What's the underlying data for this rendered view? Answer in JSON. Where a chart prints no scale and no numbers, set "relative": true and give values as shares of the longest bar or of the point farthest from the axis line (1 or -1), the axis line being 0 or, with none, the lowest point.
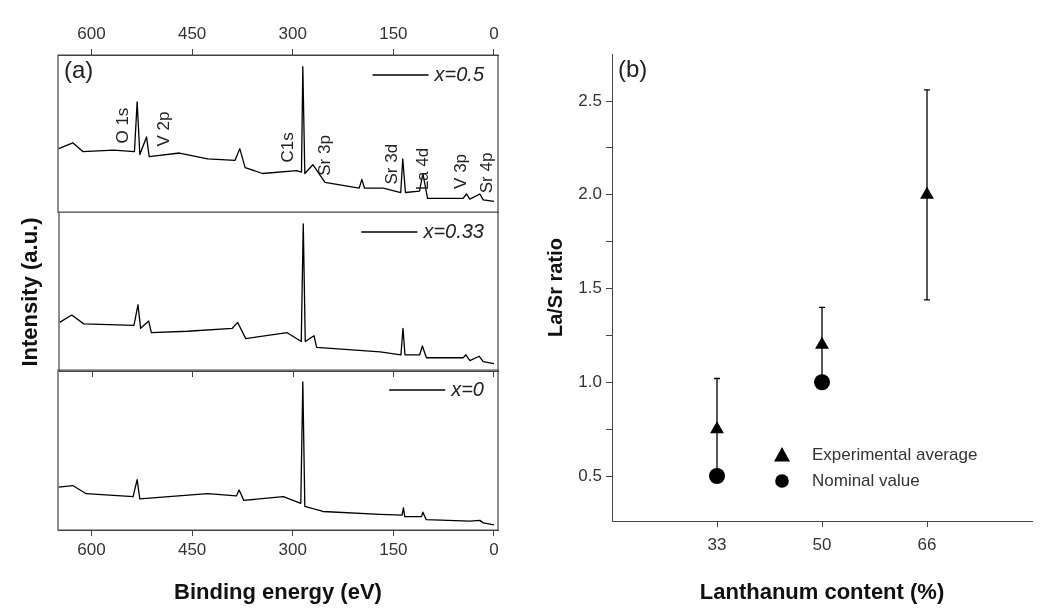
{
  "chart_data": [
    {
      "type": "line",
      "relative": true,
      "legend": "top right",
      "xlim": [
        650,
        -6
      ],
      "xticks": [
        600,
        450,
        300,
        150,
        0
      ],
      "annotations": [
        "(a)",
        {
          "text": "O 1s",
          "x": 542,
          "y": 0.42
        },
        {
          "text": "V 2p",
          "x": 481,
          "y": 0.4
        },
        {
          "text": "C1s",
          "x": 296,
          "y": 0.29
        },
        {
          "text": "Sr 3p",
          "x": 242,
          "y": 0.2
        },
        {
          "text": "Sr 3d",
          "x": 142,
          "y": 0.14
        },
        {
          "text": "La 4d",
          "x": 95,
          "y": 0.1
        },
        {
          "text": "V 3p",
          "x": 39,
          "y": 0.11
        },
        {
          "text": "Sr 4p",
          "x": 0,
          "y": 0.08
        }
      ],
      "series": [
        {
          "name": "x=0.5",
          "color": "#000000",
          "x": [
            649,
            628,
            613,
            567,
            536,
            532,
            528,
            518,
            514,
            469,
            427,
            386,
            379,
            371,
            345,
            294,
            287,
            285,
            282,
            270,
            252,
            201,
            197,
            193,
            165,
            139,
            136,
            132,
            111,
            106,
            99,
            46,
            41,
            36,
            21,
            16,
            0
          ],
          "values": [
            0.44,
            0.48,
            0.42,
            0.43,
            0.42,
            0.76,
            0.4,
            0.52,
            0.385,
            0.41,
            0.37,
            0.36,
            0.44,
            0.31,
            0.27,
            0.29,
            0.28,
            1.0,
            0.27,
            0.33,
            0.21,
            0.17,
            0.23,
            0.17,
            0.17,
            0.14,
            0.37,
            0.14,
            0.15,
            0.27,
            0.1,
            0.1,
            0.13,
            0.095,
            0.13,
            0.09,
            0.08
          ]
        }
      ]
    },
    {
      "type": "line",
      "relative": true,
      "legend": "top right",
      "ylabel": "Intensity (a.u.)",
      "xlim": [
        650,
        -6
      ],
      "xticks": [
        600,
        450,
        300,
        150,
        0
      ],
      "tick_labels": false,
      "series": [
        {
          "name": "x=0.33",
          "color": "#000000",
          "x": [
            649,
            631,
            613,
            538,
            532,
            528,
            516,
            512,
            458,
            391,
            383,
            371,
            309,
            288,
            285,
            282,
            269,
            265,
            170,
            139,
            136,
            133,
            111,
            107,
            101,
            46,
            42,
            36,
            22,
            16,
            0
          ],
          "values": [
            0.33,
            0.38,
            0.32,
            0.31,
            0.45,
            0.29,
            0.34,
            0.26,
            0.27,
            0.29,
            0.33,
            0.22,
            0.26,
            0.2,
            1.0,
            0.2,
            0.24,
            0.16,
            0.13,
            0.11,
            0.29,
            0.11,
            0.11,
            0.17,
            0.09,
            0.09,
            0.11,
            0.07,
            0.1,
            0.063,
            0.05
          ]
        }
      ]
    },
    {
      "type": "line",
      "relative": true,
      "legend": "top right",
      "xlabel": "Binding energy (eV)",
      "xlim": [
        650,
        -6
      ],
      "xticks": [
        600,
        450,
        300,
        150,
        0
      ],
      "series": [
        {
          "name": "x=0",
          "color": "#000000",
          "x": [
            649,
            628,
            608,
            538,
            532,
            528,
            427,
            384,
            380,
            373,
            314,
            288,
            285,
            282,
            255,
            170,
            137,
            135,
            133,
            108,
            106,
            101,
            36,
            21,
            16,
            0
          ],
          "values": [
            0.29,
            0.3,
            0.245,
            0.225,
            0.34,
            0.21,
            0.245,
            0.23,
            0.27,
            0.2,
            0.225,
            0.18,
            1.0,
            0.16,
            0.125,
            0.105,
            0.1,
            0.15,
            0.09,
            0.09,
            0.12,
            0.07,
            0.06,
            0.065,
            0.048,
            0.034
          ]
        }
      ]
    },
    {
      "type": "scatter",
      "annotations": [
        "(b)"
      ],
      "xlabel": "Lanthanum content (%)",
      "ylabel": "La/Sr ratio",
      "categories": [
        "33",
        "50",
        "66"
      ],
      "ylim": [
        0.26,
        2.75
      ],
      "yticks": [
        0.5,
        {
          "value": 0.75,
          "label": null
        },
        {
          "value": 1,
          "label": "1.0"
        },
        {
          "value": 1.25,
          "label": null
        },
        1.5,
        {
          "value": 1.75,
          "label": null
        },
        {
          "value": 2,
          "label": "2.0"
        },
        {
          "value": 2.25,
          "label": null
        },
        2.5
      ],
      "legend": "bottom right",
      "series": [
        {
          "name": "Experimental average",
          "color": "#000000",
          "marker": "triangle",
          "values": [
            0.75,
            1.2,
            2.0
          ],
          "errors": [
            0.27,
            0.2,
            0.56
          ]
        },
        {
          "name": "Nominal value",
          "color": "#000000",
          "marker": "circle",
          "values": [
            0.5,
            1.0,
            null
          ]
        }
      ]
    }
  ]
}
